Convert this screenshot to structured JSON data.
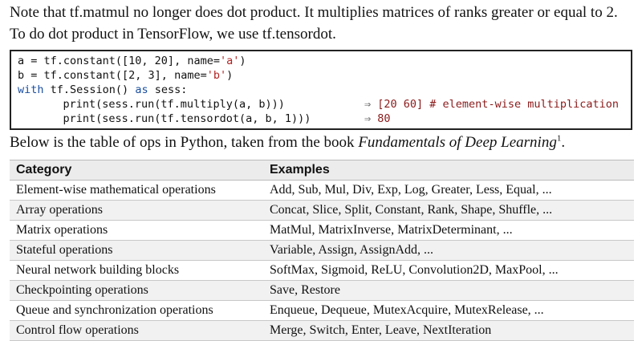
{
  "text": {
    "para1": "Note that tf.matmul no longer does dot product. It multiplies matrices of ranks greater or equal to 2.",
    "para2": "To do dot product in TensorFlow, we use tf.tensordot.",
    "intro_before": "Below is the table of ops in Python, taken from the book ",
    "intro_book": "Fundamentals of Deep Learning",
    "intro_sup": "1",
    "intro_after": "."
  },
  "code": {
    "line1": {
      "a": "a = tf.constant([10, 20], name=",
      "b": "'a'",
      "c": ")"
    },
    "line2": {
      "a": "b = tf.constant([2, 3], name=",
      "b": "'b'",
      "c": ")"
    },
    "line3": {
      "kw1": "with",
      "a": " tf.Session() ",
      "kw2": "as",
      "b": " sess:"
    },
    "line4": {
      "a": "    print(sess.run(tf.multiply(a, b)))"
    },
    "line5": {
      "a": "    print(sess.run(tf.tensordot(a, b, 1)))"
    },
    "comment4": {
      "arrow": "⇒",
      "text": " [20 60] # element-wise multiplication"
    },
    "comment5": {
      "arrow": "⇒",
      "text": " 80"
    }
  },
  "table": {
    "headers": [
      "Category",
      "Examples"
    ],
    "rows": [
      [
        "Element-wise mathematical operations",
        "Add, Sub, Mul, Div, Exp, Log, Greater, Less, Equal, ..."
      ],
      [
        "Array operations",
        "Concat, Slice, Split, Constant, Rank, Shape, Shuffle, ..."
      ],
      [
        "Matrix operations",
        "MatMul, MatrixInverse, MatrixDeterminant, ..."
      ],
      [
        "Stateful operations",
        "Variable, Assign, AssignAdd, ..."
      ],
      [
        "Neural network building blocks",
        "SoftMax, Sigmoid, ReLU, Convolution2D, MaxPool, ..."
      ],
      [
        "Checkpointing operations",
        "Save, Restore"
      ],
      [
        "Queue and synchronization operations",
        "Enqueue, Dequeue, MutexAcquire, MutexRelease, ..."
      ],
      [
        "Control flow operations",
        "Merge, Switch, Enter, Leave, NextIteration"
      ]
    ]
  }
}
